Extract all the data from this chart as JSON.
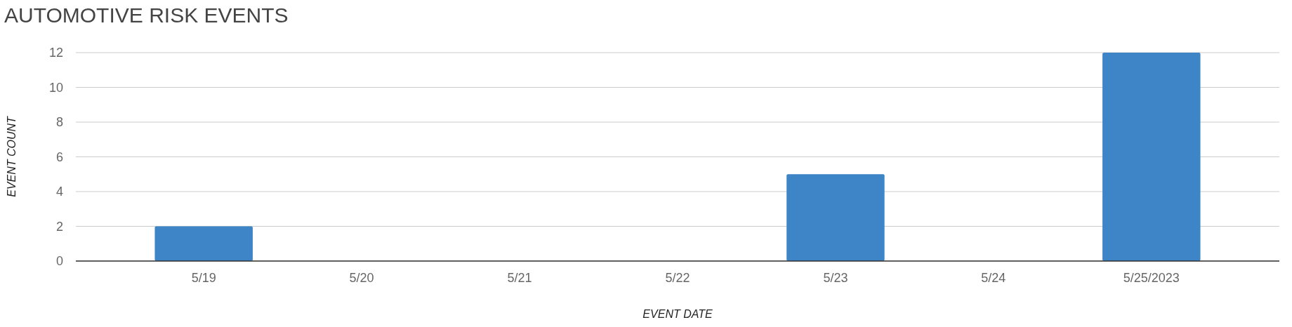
{
  "chart_data": {
    "type": "bar",
    "title": "AUTOMOTIVE RISK EVENTS",
    "xlabel": "EVENT DATE",
    "ylabel": "EVENT COUNT",
    "categories": [
      "5/19",
      "5/20",
      "5/21",
      "5/22",
      "5/23",
      "5/24",
      "5/25/2023"
    ],
    "values": [
      2,
      0,
      0,
      0,
      5,
      0,
      12
    ],
    "color": "#3d85c6",
    "ylim": [
      0,
      12
    ],
    "yticks": [
      0,
      2,
      4,
      6,
      8,
      10,
      12
    ],
    "grid": "y"
  }
}
